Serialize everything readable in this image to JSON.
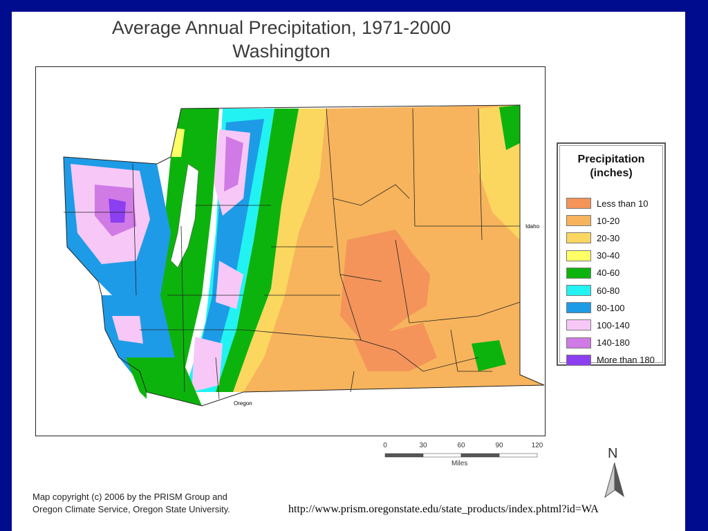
{
  "title": {
    "line1": "Average Annual Precipitation, 1971-2000",
    "line2": "Washington"
  },
  "legend": {
    "title_line1": "Precipitation",
    "title_line2": "(inches)",
    "items": [
      {
        "label": "Less than 10",
        "color": "#f4945a"
      },
      {
        "label": "10-20",
        "color": "#f7b45c"
      },
      {
        "label": "20-30",
        "color": "#fbd760"
      },
      {
        "label": "30-40",
        "color": "#ffff66"
      },
      {
        "label": "40-60",
        "color": "#0db30d"
      },
      {
        "label": "60-80",
        "color": "#22f2f2"
      },
      {
        "label": "80-100",
        "color": "#1e9be6"
      },
      {
        "label": "100-140",
        "color": "#f7c8f7"
      },
      {
        "label": "140-180",
        "color": "#d07ae6"
      },
      {
        "label": "More than 180",
        "color": "#8c3ff0"
      }
    ]
  },
  "map_labels": {
    "idaho": "Idaho",
    "oregon": "Oregon"
  },
  "scale": {
    "ticks": [
      "0",
      "30",
      "60",
      "90",
      "120"
    ],
    "unit": "Miles"
  },
  "north": "N",
  "copyright": {
    "line1": "Map copyright (c) 2006 by the PRISM Group and",
    "line2": "Oregon Climate Service, Oregon State University."
  },
  "url": "http://www.prism.oregonstate.edu/state_products/index.phtml?id=WA"
}
